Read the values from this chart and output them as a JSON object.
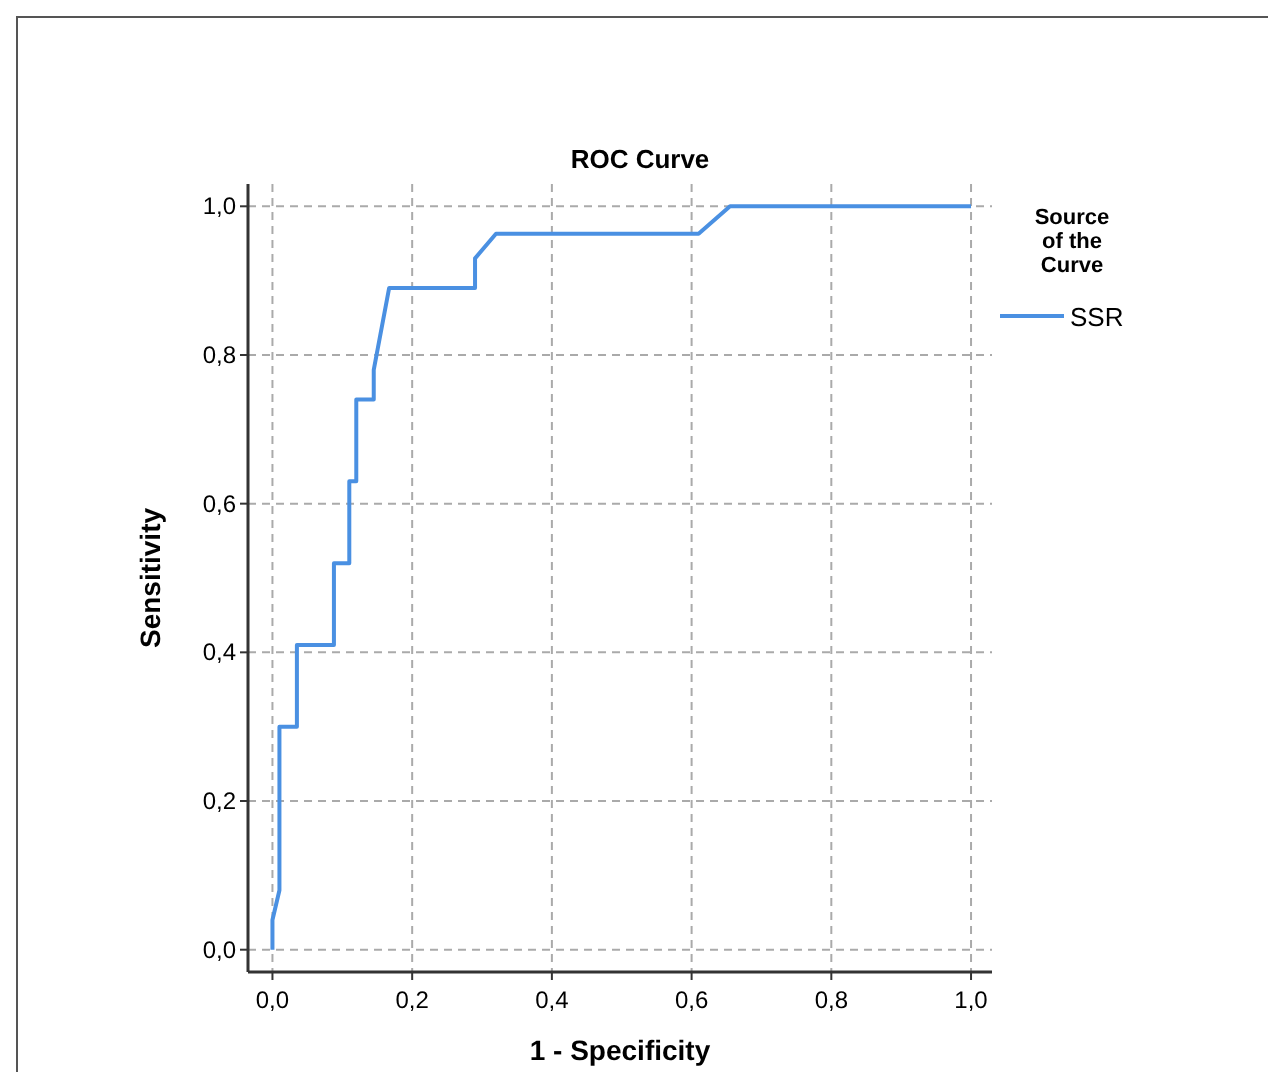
{
  "chart_data": {
    "type": "line",
    "title": "ROC Curve",
    "xlabel": "1 - Specificity",
    "ylabel": "Sensitivity",
    "legend_title": "Source of the Curve",
    "legend": "right",
    "grid": true,
    "line_style": "solid",
    "marker": "none",
    "xlim": [
      -0.035,
      1.03
    ],
    "ylim": [
      -0.03,
      1.03
    ],
    "xticks": [
      {
        "value": 0,
        "label": "0,0"
      },
      {
        "value": 0.2,
        "label": "0,2"
      },
      {
        "value": 0.4,
        "label": "0,4"
      },
      {
        "value": 0.6,
        "label": "0,6"
      },
      {
        "value": 0.8,
        "label": "0,8"
      },
      {
        "value": 1,
        "label": "1,0"
      }
    ],
    "yticks": [
      {
        "value": 0,
        "label": "0,0"
      },
      {
        "value": 0.2,
        "label": "0,2"
      },
      {
        "value": 0.4,
        "label": "0,4"
      },
      {
        "value": 0.6,
        "label": "0,6"
      },
      {
        "value": 0.8,
        "label": "0,8"
      },
      {
        "value": 1,
        "label": "1,0"
      }
    ],
    "series": [
      {
        "name": "SSR",
        "color": "#4a90e2",
        "x": [
          0,
          0,
          0.01,
          0.01,
          0.035,
          0.035,
          0.088,
          0.088,
          0.11,
          0.11,
          0.12,
          0.12,
          0.145,
          0.145,
          0.167,
          0.29,
          0.29,
          0.32,
          0.61,
          0.655,
          1
        ],
        "values": [
          0,
          0.04,
          0.08,
          0.3,
          0.3,
          0.41,
          0.41,
          0.52,
          0.52,
          0.63,
          0.63,
          0.74,
          0.74,
          0.78,
          0.89,
          0.89,
          0.93,
          0.963,
          0.963,
          1,
          1
        ]
      }
    ]
  }
}
